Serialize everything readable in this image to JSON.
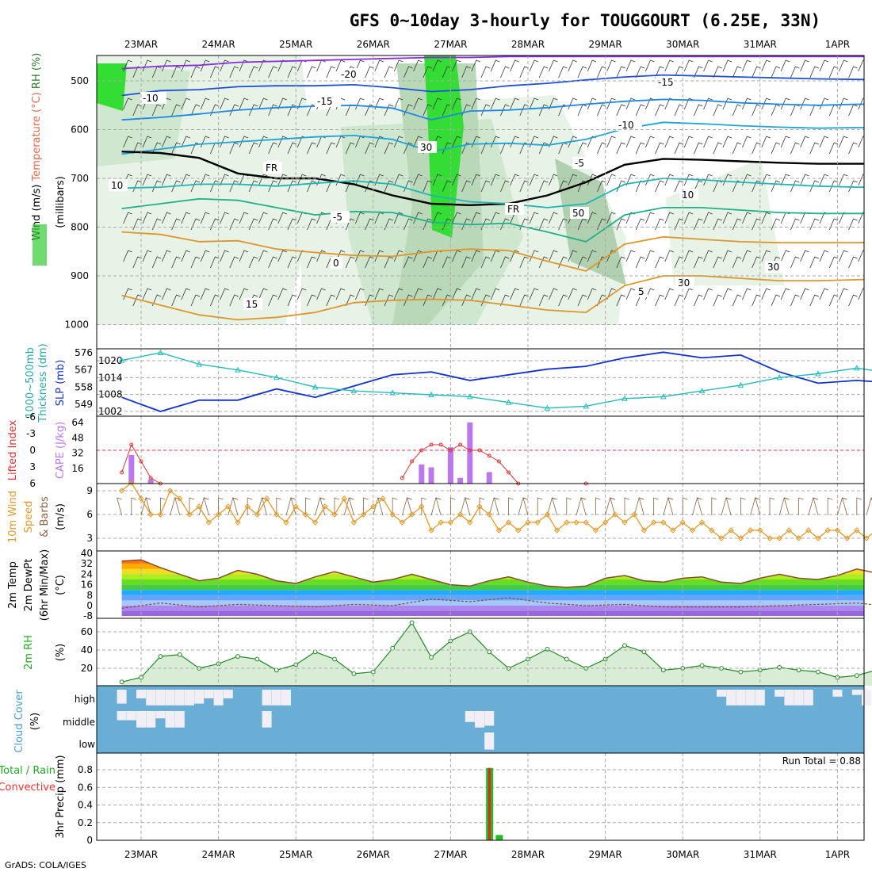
{
  "title": "GFS 0~10day 3-hourly for TOUGGOURT (6.25E, 33N)",
  "footer": "GrADS: COLA/IGES",
  "run_total_label": "Run Total = 0.88",
  "dates": [
    "23MAR",
    "24MAR",
    "25MAR",
    "26MAR",
    "27MAR",
    "28MAR",
    "29MAR",
    "30MAR",
    "31MAR",
    "1APR"
  ],
  "cloud_levels": [
    "high",
    "middle",
    "low"
  ],
  "chart_data": [
    {
      "panel": "upper-air",
      "type": "heatmap",
      "ylabel": [
        "Wind (m/s)",
        "Temperature (°C)",
        "RH (%)",
        "(millibars)"
      ],
      "y_ticks": [
        500,
        600,
        700,
        800,
        900,
        1000
      ],
      "ylim": [
        1000,
        450
      ],
      "contour_labels": [
        "-20",
        "-15",
        "-15",
        "-10",
        "-10",
        "-5",
        "-5",
        "0",
        "0",
        "5",
        "10",
        "10",
        "15",
        "FR",
        "FR",
        "30",
        "50",
        "30",
        "30"
      ],
      "temperature_isotherms": [
        {
          "t": -20,
          "y": [
            475,
            470,
            468,
            462,
            460,
            458,
            456,
            454,
            452,
            452,
            450,
            450,
            450,
            450,
            450,
            450,
            450,
            450,
            450,
            450,
            450
          ]
        },
        {
          "t": -15,
          "y": [
            530,
            520,
            518,
            512,
            510,
            510,
            508,
            514,
            522,
            518,
            510,
            505,
            498,
            492,
            488,
            490,
            492,
            494,
            496,
            497,
            498
          ]
        },
        {
          "t": -10,
          "y": [
            580,
            575,
            568,
            560,
            555,
            552,
            550,
            556,
            580,
            562,
            560,
            555,
            548,
            542,
            538,
            540,
            545,
            548,
            550,
            548,
            548
          ]
        },
        {
          "t": -5,
          "y": [
            650,
            640,
            630,
            625,
            620,
            615,
            612,
            620,
            645,
            630,
            628,
            632,
            620,
            598,
            585,
            588,
            592,
            595,
            597,
            596,
            596
          ]
        },
        {
          "t": 0,
          "y": [
            645,
            648,
            658,
            690,
            700,
            700,
            712,
            735,
            752,
            755,
            752,
            735,
            708,
            672,
            660,
            662,
            665,
            668,
            670,
            670,
            670
          ]
        },
        {
          "t": 5,
          "y": [
            720,
            718,
            712,
            712,
            716,
            710,
            705,
            712,
            735,
            748,
            752,
            760,
            752,
            712,
            700,
            703,
            708,
            712,
            716,
            718,
            718
          ]
        },
        {
          "t": 10,
          "y": [
            762,
            752,
            742,
            745,
            760,
            775,
            768,
            770,
            790,
            795,
            792,
            810,
            830,
            775,
            760,
            760,
            765,
            770,
            772,
            772,
            772
          ]
        },
        {
          "t": 15,
          "y": [
            810,
            815,
            830,
            828,
            845,
            852,
            858,
            860,
            850,
            845,
            848,
            870,
            890,
            835,
            820,
            825,
            830,
            832,
            832,
            832,
            830
          ]
        },
        {
          "t": 20,
          "y": [
            940,
            960,
            980,
            990,
            985,
            975,
            955,
            950,
            948,
            950,
            960,
            970,
            975,
            920,
            900,
            900,
            905,
            910,
            910,
            908,
            905
          ]
        }
      ]
    },
    {
      "panel": "pressure",
      "type": "line",
      "ylabel": [
        "1000~500mb",
        "Thickness (dm)",
        "SLP (mb)"
      ],
      "left_ticks": [
        549,
        558,
        567,
        576
      ],
      "right_ticks": [
        1002,
        1008,
        1014,
        1020
      ],
      "series": [
        {
          "name": "SLP (mb)",
          "x": [
            0,
            4,
            8,
            12,
            16,
            20,
            24,
            28,
            32,
            36,
            40,
            44,
            48,
            52,
            56,
            60,
            64,
            68,
            72,
            76,
            80,
            81
          ],
          "values": [
            1007,
            1002,
            1006,
            1006,
            1010,
            1007,
            1011,
            1015,
            1016,
            1013,
            1015,
            1017,
            1018,
            1021,
            1023,
            1021,
            1022,
            1016,
            1012,
            1013,
            1012,
            1012
          ]
        },
        {
          "name": "1000~500mb Thickness (dm)",
          "x": [
            0,
            4,
            8,
            12,
            16,
            20,
            24,
            28,
            32,
            36,
            40,
            44,
            48,
            52,
            56,
            60,
            64,
            68,
            72,
            76,
            80,
            81
          ],
          "values": [
            572,
            576,
            570,
            567,
            563,
            558,
            556,
            555,
            554,
            553,
            550,
            547,
            548,
            552,
            553,
            556,
            559,
            563,
            565,
            568,
            565,
            564
          ]
        }
      ]
    },
    {
      "panel": "instability",
      "type": "bar",
      "ylabel": [
        "Lifted Index",
        "CAPE (J/kg)"
      ],
      "left_ticks": [
        6,
        3,
        0,
        -3,
        -6
      ],
      "right_ticks": [
        16,
        32,
        48,
        64
      ],
      "series": [
        {
          "name": "CAPE (J/kg)",
          "x": [
            1,
            3,
            31,
            32,
            34,
            35,
            36,
            38
          ],
          "values": [
            30,
            4,
            20,
            17,
            38,
            6,
            64,
            12
          ]
        },
        {
          "name": "Lifted Index",
          "x": [
            0,
            1,
            2,
            3,
            4,
            29,
            30,
            31,
            32,
            33,
            34,
            35,
            36,
            37,
            38,
            39,
            40,
            41,
            48
          ],
          "values": [
            4,
            -1,
            2,
            5,
            6,
            5,
            2,
            0,
            -1,
            -1,
            0,
            -1,
            0,
            0,
            1,
            2,
            4,
            6,
            6
          ]
        }
      ]
    },
    {
      "panel": "wind10m",
      "type": "line",
      "ylabel": [
        "10m Wind",
        "Speed",
        "& Barbs",
        "(m/s)"
      ],
      "left_ticks": [
        3,
        6,
        9
      ],
      "series": [
        {
          "name": "Speed",
          "x": [
            0,
            1,
            2,
            3,
            4,
            5,
            6,
            7,
            8,
            9,
            10,
            11,
            12,
            13,
            14,
            15,
            16,
            17,
            18,
            19,
            20,
            21,
            22,
            23,
            24,
            25,
            26,
            27,
            28,
            29,
            30,
            31,
            32,
            33,
            34,
            35,
            36,
            37,
            38,
            39,
            40,
            41,
            42,
            43,
            44,
            45,
            46,
            47,
            48,
            49,
            50,
            51,
            52,
            53,
            54,
            55,
            56,
            57,
            58,
            59,
            60,
            61,
            62,
            63,
            64,
            65,
            66,
            67,
            68,
            69,
            70,
            71,
            72,
            73,
            74,
            75,
            76,
            77,
            78,
            79,
            80,
            81
          ],
          "values": [
            9,
            10,
            8,
            6,
            6,
            9,
            8,
            6,
            7,
            5,
            6,
            7,
            5,
            7,
            6,
            8,
            6,
            5,
            7,
            6,
            5,
            7,
            6,
            8,
            5,
            6,
            7,
            8,
            6,
            5,
            6,
            7,
            4,
            5,
            5,
            6,
            5,
            7,
            6,
            4,
            5,
            4,
            5,
            5,
            6,
            4,
            5,
            5,
            5,
            4,
            5,
            6,
            5,
            6,
            4,
            5,
            5,
            4,
            5,
            4,
            5,
            4,
            3,
            4,
            3,
            4,
            4,
            3,
            3,
            4,
            3,
            4,
            3,
            4,
            4,
            3,
            4,
            3,
            4,
            3,
            3,
            3
          ]
        }
      ]
    },
    {
      "panel": "temperature2m",
      "type": "area",
      "ylabel": [
        "2m Temp",
        "2m DewPt",
        "(6hr Min/Max)",
        "(°C)"
      ],
      "left_ticks": [
        -8,
        0,
        8,
        16,
        24,
        32,
        40
      ],
      "series": [
        {
          "name": "2m Temp",
          "x": [
            0,
            2,
            4,
            6,
            8,
            10,
            12,
            14,
            16,
            18,
            20,
            22,
            24,
            26,
            28,
            30,
            32,
            34,
            36,
            38,
            40,
            42,
            44,
            46,
            48,
            50,
            52,
            54,
            56,
            58,
            60,
            62,
            64,
            66,
            68,
            70,
            72,
            74,
            76,
            78,
            80,
            81
          ],
          "values": [
            34,
            35,
            29,
            24,
            19,
            21,
            27,
            24,
            19,
            17,
            22,
            26,
            22,
            18,
            20,
            24,
            20,
            16,
            15,
            19,
            22,
            18,
            15,
            14,
            15,
            21,
            23,
            19,
            18,
            21,
            22,
            18,
            17,
            21,
            24,
            21,
            20,
            23,
            28,
            25,
            22,
            21
          ]
        },
        {
          "name": "2m DewPt",
          "x": [
            0,
            4,
            8,
            12,
            16,
            20,
            24,
            28,
            32,
            36,
            40,
            44,
            48,
            52,
            56,
            60,
            64,
            68,
            72,
            76,
            80,
            81
          ],
          "values": [
            -2,
            2,
            -1,
            1,
            0,
            -1,
            1,
            0,
            5,
            3,
            6,
            2,
            0,
            1,
            -1,
            -1,
            -1,
            0,
            1,
            2,
            -1,
            -1
          ]
        }
      ]
    },
    {
      "panel": "rh2m",
      "type": "area",
      "ylabel": [
        "2m RH",
        "(%)"
      ],
      "left_ticks": [
        20,
        40,
        60
      ],
      "series": [
        {
          "name": "2m RH",
          "x": [
            0,
            2,
            4,
            6,
            8,
            10,
            12,
            14,
            16,
            18,
            20,
            22,
            24,
            26,
            28,
            30,
            32,
            34,
            36,
            38,
            40,
            42,
            44,
            46,
            48,
            50,
            52,
            54,
            56,
            58,
            60,
            62,
            64,
            66,
            68,
            70,
            72,
            74,
            76,
            78,
            80,
            81
          ],
          "values": [
            5,
            10,
            33,
            35,
            20,
            25,
            33,
            30,
            18,
            24,
            38,
            30,
            14,
            16,
            42,
            70,
            32,
            50,
            60,
            38,
            20,
            30,
            41,
            30,
            20,
            30,
            45,
            38,
            18,
            20,
            23,
            20,
            16,
            18,
            21,
            18,
            16,
            10,
            12,
            18,
            22,
            24
          ]
        }
      ]
    },
    {
      "panel": "cloud",
      "type": "heatmap",
      "ylabel": [
        "Cloud Cover",
        "(%)"
      ],
      "rows": [
        {
          "level": "high",
          "x": [
            0,
            2,
            3,
            4,
            5,
            6,
            7,
            8,
            9,
            10,
            11,
            15,
            16,
            17,
            62,
            63,
            64,
            65,
            66,
            68,
            69,
            70,
            71,
            74,
            76,
            77,
            81
          ],
          "values": [
            80,
            50,
            90,
            90,
            90,
            90,
            90,
            80,
            50,
            90,
            50,
            90,
            90,
            90,
            40,
            90,
            90,
            90,
            90,
            40,
            90,
            90,
            90,
            40,
            30,
            90,
            60
          ]
        },
        {
          "level": "middle",
          "x": [
            0,
            1,
            2,
            3,
            4,
            5,
            6,
            15,
            36,
            37,
            38
          ],
          "values": [
            50,
            50,
            90,
            90,
            40,
            90,
            90,
            90,
            60,
            90,
            80
          ]
        },
        {
          "level": "low",
          "x": [
            38
          ],
          "values": [
            90
          ]
        }
      ]
    },
    {
      "panel": "precip",
      "type": "bar",
      "ylabel": [
        "Total / Rain",
        "Convective",
        "3hr Precip (mm)"
      ],
      "left_ticks": [
        0,
        0.2,
        0.4,
        0.6,
        0.8
      ],
      "series": [
        {
          "name": "Total / Rain",
          "x": [
            38,
            39
          ],
          "values": [
            0.82,
            0.06
          ]
        },
        {
          "name": "Convective",
          "x": [
            38
          ],
          "values": [
            0.82
          ]
        }
      ]
    }
  ],
  "colors": {
    "rh_green": "#22dd22",
    "slp": "#1133cc",
    "thickness": "#22bbbb",
    "lifted_index": "#dd3333",
    "cape": "#bb77ee",
    "wind_speed": "#e39a2a",
    "cloud_blue": "#6aaed6",
    "precip_green": "#22bb22",
    "precip_red": "#ee2222"
  }
}
